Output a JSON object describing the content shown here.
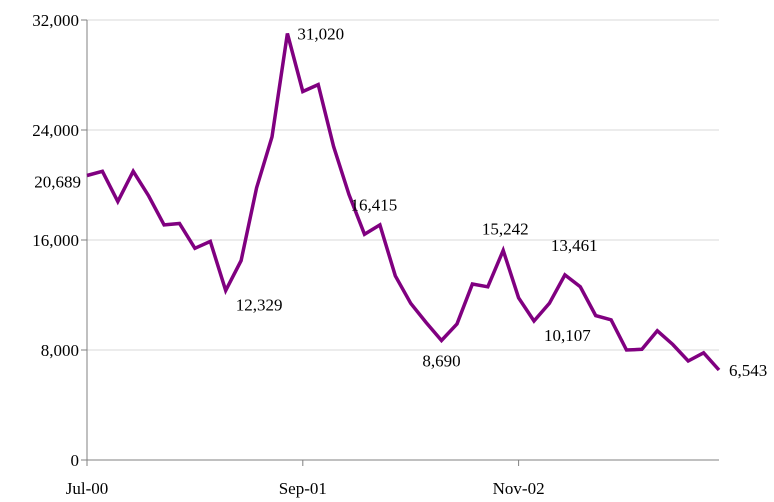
{
  "chart_data": {
    "type": "line",
    "x_tick_labels": [
      "Jul-00",
      "Sep-01",
      "Nov-02"
    ],
    "x_tick_indices": [
      0,
      14,
      28
    ],
    "y_tick_labels": [
      "0",
      "8,000",
      "16,000",
      "24,000",
      "32,000"
    ],
    "ylim": [
      0,
      32000
    ],
    "yticks": [
      0,
      8000,
      16000,
      24000,
      32000
    ],
    "grid": true,
    "line_color": "#800080",
    "series": [
      {
        "values": [
          20689,
          21000,
          18800,
          21000,
          19200,
          17100,
          17200,
          15400,
          15900,
          12329,
          14500,
          19800,
          23500,
          31020,
          26800,
          27300,
          22800,
          19300,
          16415,
          17100,
          13400,
          11400,
          10000,
          8690,
          9900,
          12800,
          12600,
          15242,
          11800,
          10107,
          11400,
          13461,
          12600,
          10500,
          10200,
          8000,
          8050,
          9400,
          8400,
          7200,
          7800,
          6543
        ]
      }
    ],
    "annotations": [
      {
        "index": 0,
        "label": "20,689",
        "pos": "left"
      },
      {
        "index": 9,
        "label": "12,329",
        "pos": "below-right"
      },
      {
        "index": 13,
        "label": "31,020",
        "pos": "right"
      },
      {
        "index": 18,
        "label": "16,415",
        "pos": "above-right"
      },
      {
        "index": 23,
        "label": "8,690",
        "pos": "below"
      },
      {
        "index": 27,
        "label": "15,242",
        "pos": "above"
      },
      {
        "index": 29,
        "label": "10,107",
        "pos": "below-right"
      },
      {
        "index": 31,
        "label": "13,461",
        "pos": "above-right"
      },
      {
        "index": 41,
        "label": "6,543",
        "pos": "right"
      }
    ]
  }
}
